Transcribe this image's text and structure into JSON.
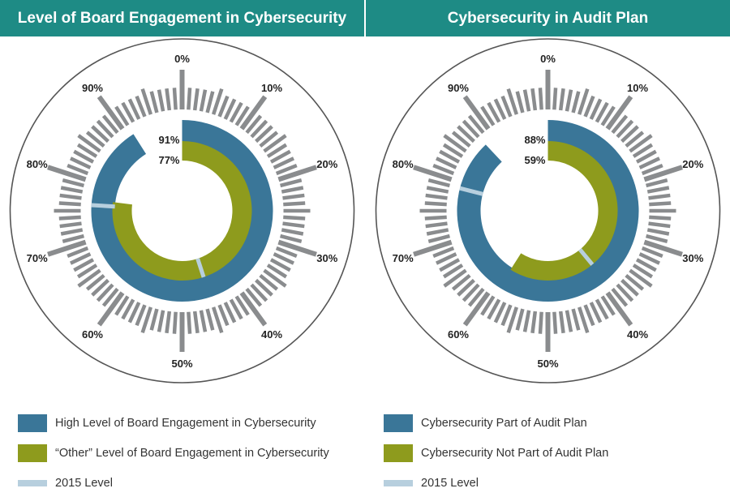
{
  "colors": {
    "header_bg": "#1e8b85",
    "high": "#3a7698",
    "other": "#8e9b1d",
    "level_2015": "#b7cfde",
    "ticks": "#8a8c8e",
    "circle": "#555555"
  },
  "chart_data": [
    {
      "type": "radial-bar",
      "title": "Level of Board Engagement in Cybersecurity",
      "tick_labels": [
        "0%",
        "10%",
        "20%",
        "30%",
        "40%",
        "50%",
        "60%",
        "70%",
        "80%",
        "90%"
      ],
      "series": [
        {
          "name": "High Level of Board Engagement in Cybersecurity",
          "value": 91,
          "value_label": "91%",
          "level_2015": 76
        },
        {
          "name": "“Other” Level of Board Engagement in Cybersecurity",
          "value": 77,
          "value_label": "77%",
          "level_2015": 45
        }
      ],
      "legend": {
        "high": "High Level of Board Engagement in Cybersecurity",
        "other": "“Other” Level of Board Engagement in Cybersecurity",
        "level_2015": "2015 Level"
      }
    },
    {
      "type": "radial-bar",
      "title": "Cybersecurity in Audit Plan",
      "tick_labels": [
        "0%",
        "10%",
        "20%",
        "30%",
        "40%",
        "50%",
        "60%",
        "70%",
        "80%",
        "90%"
      ],
      "series": [
        {
          "name": "Cybersecurity Part of Audit Plan",
          "value": 88,
          "value_label": "88%",
          "level_2015": 79
        },
        {
          "name": "Cybersecurity Not Part of Audit Plan",
          "value": 59,
          "value_label": "59%",
          "level_2015": 39
        }
      ],
      "legend": {
        "high": "Cybersecurity Part of Audit Plan",
        "other": "Cybersecurity Not Part of Audit Plan",
        "level_2015": "2015 Level"
      }
    }
  ]
}
